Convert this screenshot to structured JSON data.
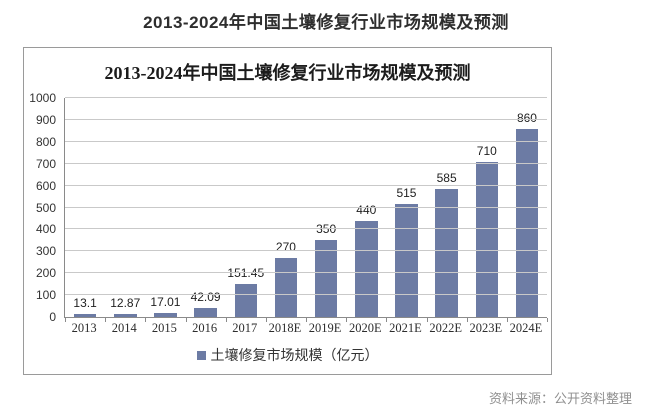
{
  "page_title": "2013-2024年中国土壤修复行业市场规模及预测",
  "source_note": "资料来源：公开资料整理",
  "colors": {
    "bar": "#6c7ba4",
    "grid": "#c9c9c9",
    "axis": "#8a8a8a",
    "box_border": "#9a9a9a",
    "source_text": "#8f8f8f"
  },
  "chart_data": {
    "type": "bar",
    "title": "2013-2024年中国土壤修复行业市场规模及预测",
    "categories": [
      "2013",
      "2014",
      "2015",
      "2016",
      "2017",
      "2018E",
      "2019E",
      "2020E",
      "2021E",
      "2022E",
      "2023E",
      "2024E"
    ],
    "values": [
      13.1,
      12.87,
      17.01,
      42.09,
      151.45,
      270,
      350,
      440,
      515,
      585,
      710,
      860
    ],
    "value_labels": [
      "13.1",
      "12.87",
      "17.01",
      "42.09",
      "151.45",
      "270",
      "350",
      "440",
      "515",
      "585",
      "710",
      "860"
    ],
    "legend": "土壤修复市场规模（亿元）",
    "xlabel": "",
    "ylabel": "",
    "ylim": [
      0,
      1000
    ],
    "ytick_step": 100,
    "grid": true,
    "legend_position": "bottom"
  }
}
